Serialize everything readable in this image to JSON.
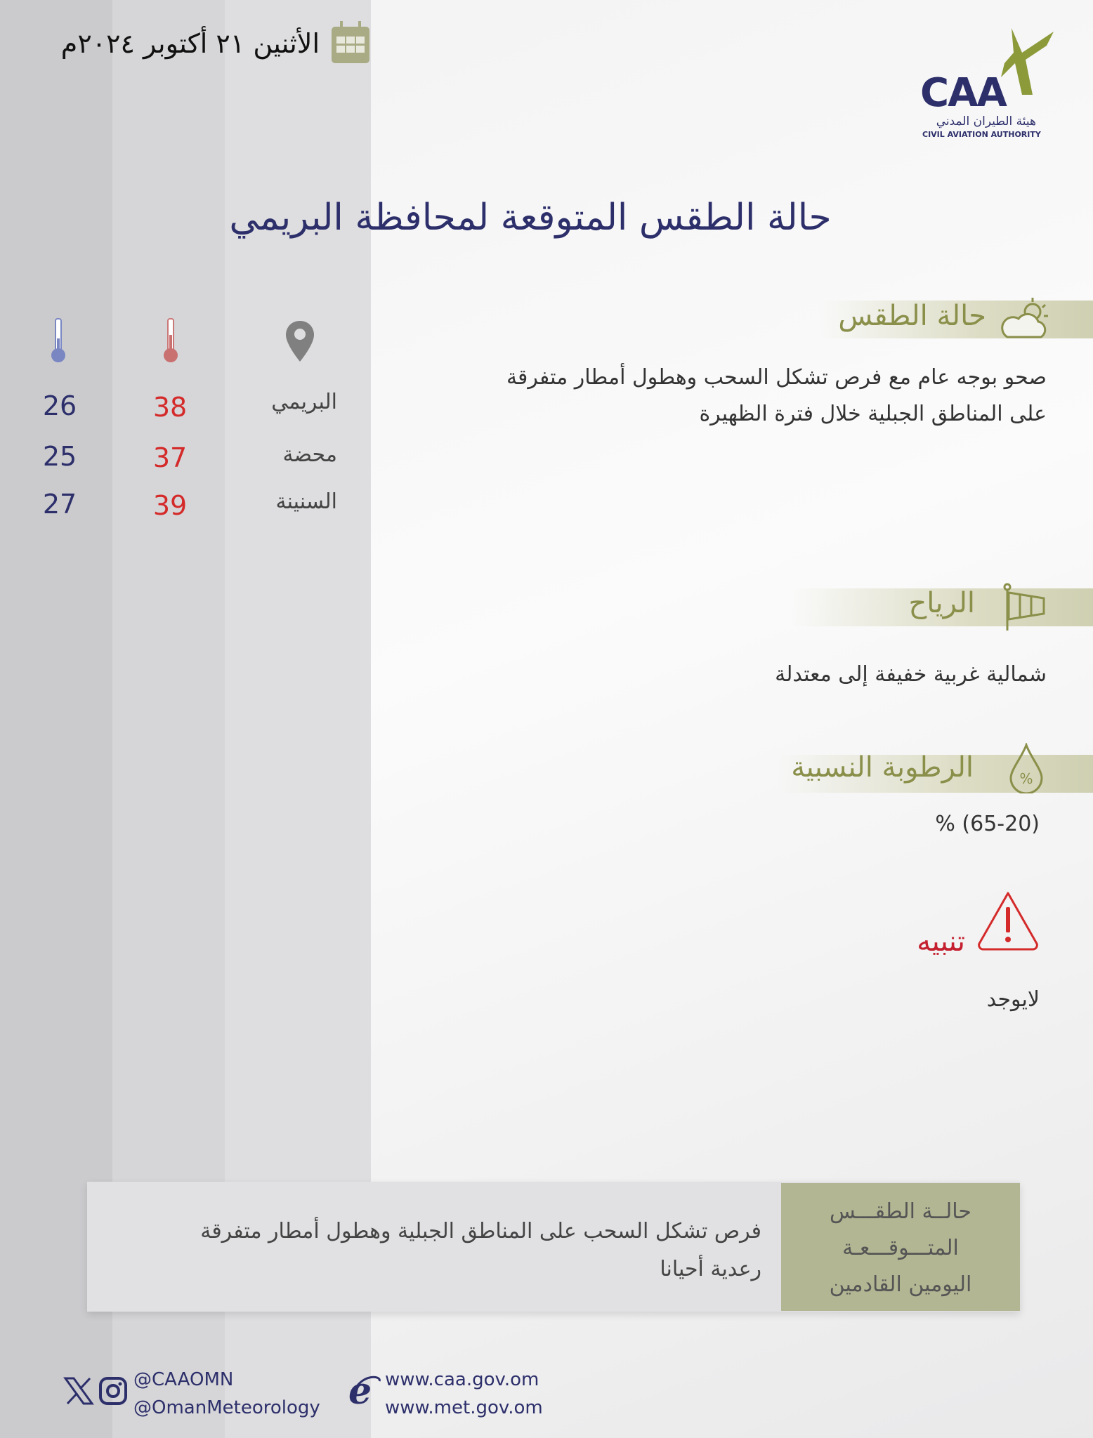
{
  "header": {
    "date": "الأثنين ٢١ أكتوبر ٢٠٢٤م",
    "calendar_icon": "calendar-icon"
  },
  "logo": {
    "text": "CAA",
    "arabic": "هيئة الطيران المدني",
    "english": "CIVIL AVIATION AUTHORITY"
  },
  "title": "حالة الطقس المتوقعة لمحافظة البريمي",
  "weather": {
    "heading": "حالة الطقس",
    "lines": [
      "صحو  بوجه  عام مع فرص تشكل السحب وهطول أمطار متفرقة",
      "على المناطق الجبلية  خلال فترة الظهيرة"
    ]
  },
  "winds": {
    "heading": "الرياح",
    "text": "شمالية غربية خفيفة إلى معتدلة"
  },
  "humidity": {
    "heading": "الرطوبة النسبية",
    "text": "% (65-20)"
  },
  "alert": {
    "heading": "تنبيه",
    "text": "لايوجد"
  },
  "stations": [
    {
      "name": "البريمي",
      "max": "38",
      "min": "26"
    },
    {
      "name": "محضة",
      "max": "37",
      "min": "25"
    },
    {
      "name": "السنينة",
      "max": "39",
      "min": "27"
    }
  ],
  "outlook": {
    "label_lines": [
      "حالــة الطقـــس",
      "المتـــوقـــعـة",
      "اليومين القادمين"
    ],
    "lines": [
      "فرص تشكل السحب على المناطق الجبلية وهطول أمطار متفرقة",
      "رعدية أحيانا"
    ]
  },
  "footer": {
    "handle1": "@CAAOMN",
    "handle2": "@OmanMeteorology",
    "url1": "www.caa.gov.om",
    "url2": "www.met.gov.om"
  },
  "colors": {
    "navy": "#2d2f6b",
    "olive": "#8a8f4a",
    "red": "#d42a2a",
    "box_olive": "#b3b693"
  }
}
